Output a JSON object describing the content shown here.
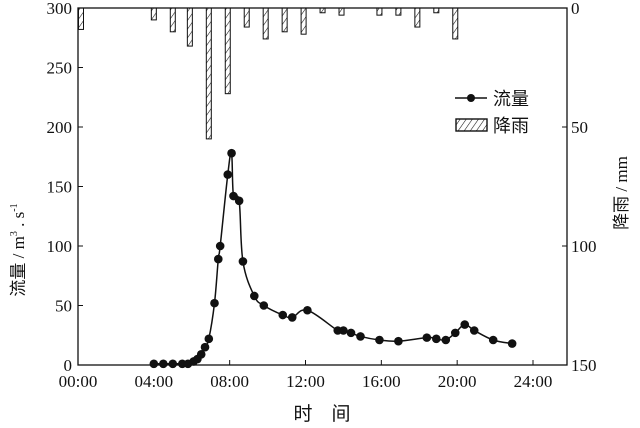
{
  "chart_data": {
    "type": "line+bar",
    "title": "",
    "xlabel": "时　间",
    "ylabel_left": "流量 / m3 . s-1",
    "ylabel_left_parts": {
      "main": "流量 / m",
      "sup1": "3",
      "mid": " . s",
      "sup2": "-1"
    },
    "ylabel_right": "降雨 / mm",
    "x_ticks": [
      "00:00",
      "04:00",
      "08:00",
      "12:00",
      "16:00",
      "20:00",
      "24:00"
    ],
    "x_range_hours": [
      0,
      26
    ],
    "ylim_left": [
      0,
      300
    ],
    "y_ticks_left": [
      0,
      50,
      100,
      150,
      200,
      250,
      300
    ],
    "ylim_right": [
      0,
      150
    ],
    "y_ticks_right": [
      0,
      50,
      100,
      150
    ],
    "right_axis_inverted": true,
    "grid": false,
    "legend": {
      "position": "upper-right",
      "entries": [
        {
          "label": "流量",
          "style": "line-marker"
        },
        {
          "label": "降雨",
          "style": "hatched-bar"
        }
      ]
    },
    "series": [
      {
        "name": "流量",
        "axis": "left",
        "kind": "line",
        "x_hours": [
          4.0,
          4.5,
          5.0,
          5.5,
          5.8,
          6.1,
          6.3,
          6.5,
          6.7,
          6.9,
          7.2,
          7.4,
          7.5,
          7.9,
          8.1,
          8.2,
          8.5,
          8.7,
          9.3,
          9.8,
          10.8,
          11.3,
          12.1,
          13.7,
          14.0,
          14.4,
          14.9,
          15.9,
          16.9,
          18.4,
          18.9,
          19.4,
          19.9,
          20.4,
          20.9,
          21.9,
          22.9
        ],
        "values": [
          1,
          1,
          1,
          1,
          1,
          3,
          5,
          9,
          15,
          22,
          52,
          89,
          100,
          160,
          178,
          142,
          138,
          87,
          58,
          50,
          42,
          40,
          46,
          29,
          29,
          27,
          24,
          21,
          20,
          23,
          22,
          21,
          27,
          34,
          29,
          21,
          18
        ]
      },
      {
        "name": "降雨",
        "axis": "right",
        "kind": "bar",
        "x_hours": [
          0.0,
          4.0,
          5.0,
          5.9,
          6.9,
          7.9,
          8.9,
          9.9,
          10.9,
          11.9,
          12.9,
          13.9,
          15.9,
          16.9,
          17.9,
          18.9,
          19.9
        ],
        "values": [
          9,
          5,
          10,
          16,
          55,
          36,
          8,
          13,
          10,
          11,
          2,
          3,
          3,
          3,
          8,
          2,
          13
        ]
      }
    ]
  }
}
